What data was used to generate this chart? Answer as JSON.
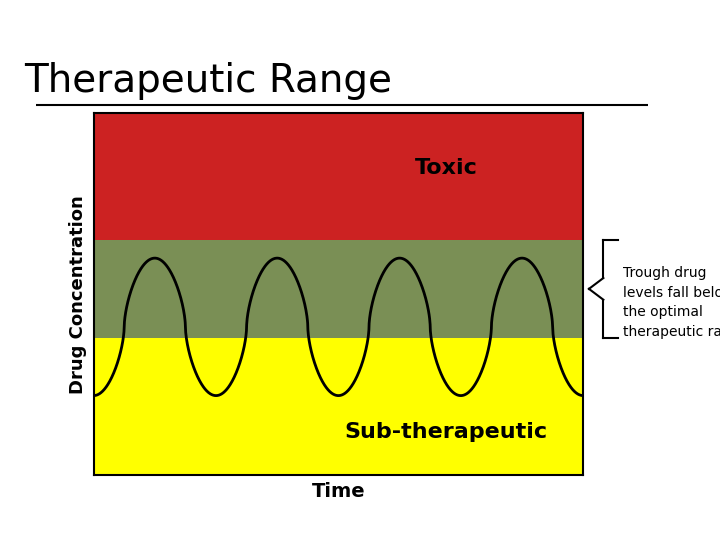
{
  "title": "Therapeutic Range",
  "title_fontsize": 28,
  "title_color": "#000000",
  "xlabel": "Time",
  "ylabel": "Drug Concentration",
  "xlabel_fontsize": 14,
  "ylabel_fontsize": 13,
  "bg_color": "#ffffff",
  "header_bar_color1": "#8b9e6e",
  "header_bar_color2": "#8b0000",
  "toxic_color": "#cc2222",
  "therapeutic_color": "#7a8f55",
  "subtherapeutic_color": "#ffff00",
  "toxic_label": "Toxic",
  "therapeutic_lower": 0.38,
  "therapeutic_upper": 0.65,
  "subtherapeutic_label": "Sub-therapeutic",
  "toxic_label_fontsize": 16,
  "subtherapeutic_label_fontsize": 16,
  "curve_color": "#000000",
  "curve_linewidth": 2.0,
  "annotation_text": "Trough drug\nlevels fall below\nthe optimal\ntherapeutic range.",
  "annotation_fontsize": 10,
  "ylim": [
    0,
    1
  ],
  "xlim": [
    0,
    1
  ]
}
